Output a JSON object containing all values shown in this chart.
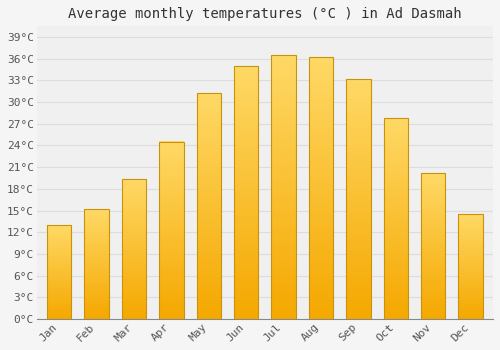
{
  "title": "Average monthly temperatures (°C ) in Ad Dasmah",
  "months": [
    "Jan",
    "Feb",
    "Mar",
    "Apr",
    "May",
    "Jun",
    "Jul",
    "Aug",
    "Sep",
    "Oct",
    "Nov",
    "Dec"
  ],
  "values": [
    13,
    15.2,
    19.3,
    24.5,
    31.2,
    35.0,
    36.5,
    36.2,
    33.2,
    27.8,
    20.2,
    14.5
  ],
  "bar_color_bottom": "#F5A800",
  "bar_color_top": "#FFD966",
  "bar_edge_color": "#C8920A",
  "background_color": "#F5F5F5",
  "plot_bg_color": "#F0F0F0",
  "grid_color": "#DDDDDD",
  "yticks": [
    0,
    3,
    6,
    9,
    12,
    15,
    18,
    21,
    24,
    27,
    30,
    33,
    36,
    39
  ],
  "ylim": [
    0,
    40.5
  ],
  "title_fontsize": 10,
  "tick_fontsize": 8,
  "font_family": "monospace"
}
